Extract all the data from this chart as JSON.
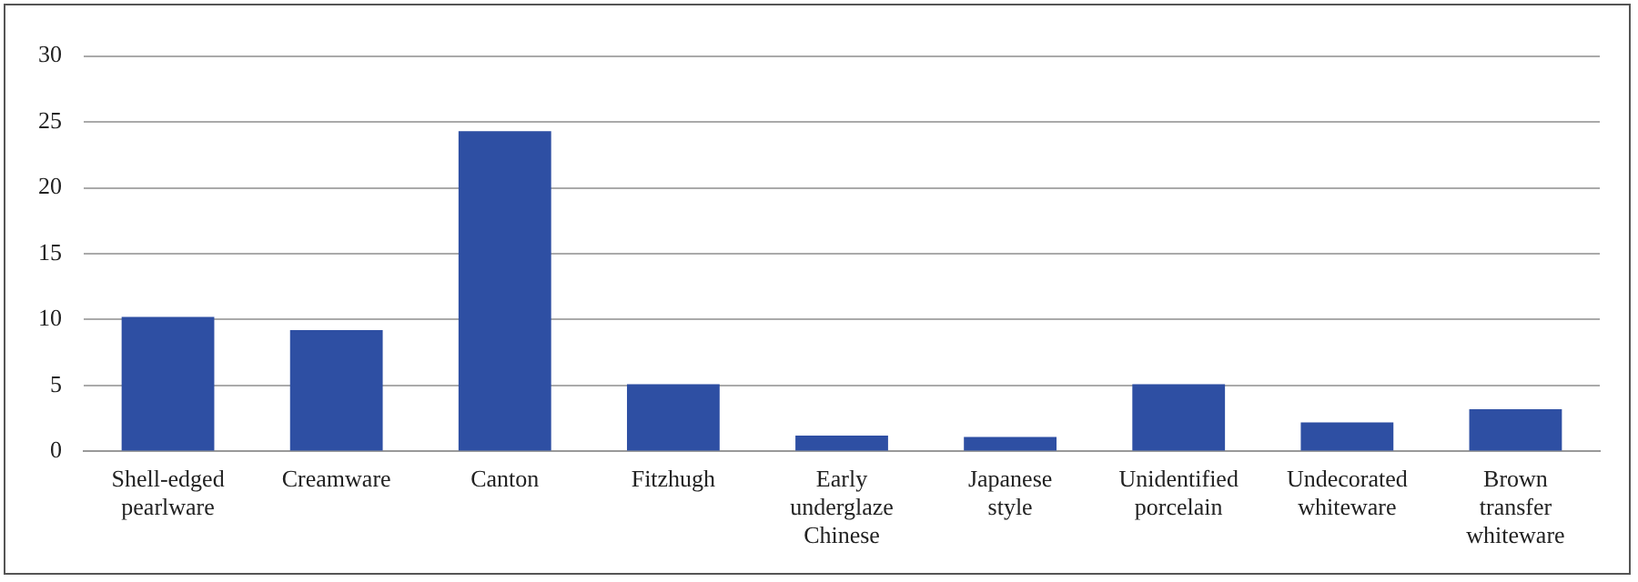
{
  "chart_data": {
    "type": "bar",
    "categories": [
      "Shell-edged pearlware",
      "Creamware",
      "Canton",
      "Fitzhugh",
      "Early underglaze Chinese",
      "Japanese style",
      "Unidentified porcelain",
      "Undecorated whiteware",
      "Brown transfer whiteware"
    ],
    "values": [
      10.2,
      9.2,
      24.3,
      5.1,
      1.2,
      1.1,
      5.1,
      2.2,
      3.2
    ],
    "color": "#2e4fa3",
    "ylim": [
      0,
      30
    ],
    "yticks": [
      0,
      5,
      10,
      15,
      20,
      25,
      30
    ],
    "grid": "y",
    "legend": false
  }
}
